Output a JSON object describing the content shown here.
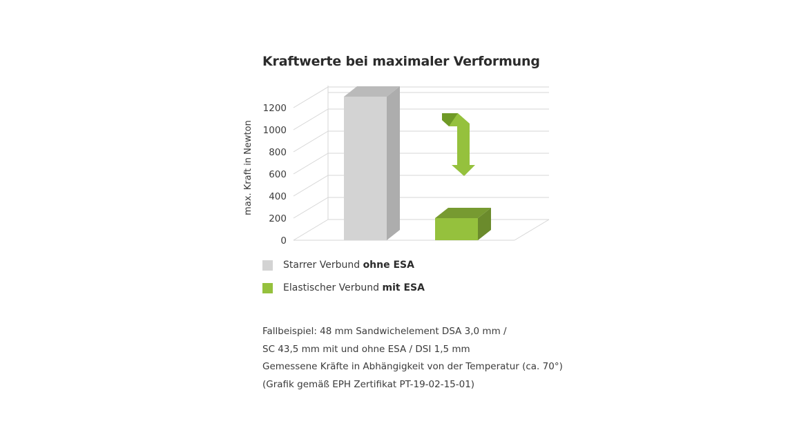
{
  "chart_data": {
    "type": "bar",
    "title": "Kraftwerte bei maximaler Verformung",
    "ylabel": "max. Kraft in Newton",
    "xlabel": "",
    "ylim": [
      0,
      1200
    ],
    "yticks": [
      0,
      200,
      400,
      600,
      800,
      1000,
      1200
    ],
    "grid": true,
    "three_d": true,
    "categories": [
      "Starrer Verbund ohne ESA",
      "Elastischer Verbund mit ESA"
    ],
    "values": [
      1300,
      200
    ],
    "colors": [
      "#d3d3d3",
      "#95c13d"
    ],
    "annotations": [
      "green-down-arrow"
    ]
  },
  "legend": [
    {
      "prefix": "Starrer Verbund ",
      "bold": "ohne ESA",
      "color": "#d3d3d3"
    },
    {
      "prefix": "Elastischer Verbund ",
      "bold": "mit ESA",
      "color": "#95c13d"
    }
  ],
  "notes": [
    "Fallbeispiel: 48 mm Sandwichelement DSA 3,0 mm /",
    "SC 43,5 mm mit und ohne ESA / DSI 1,5 mm",
    "Gemessene Kräfte in Abhängigkeit von der Temperatur (ca. 70°)",
    "(Grafik gemäß EPH Zertifikat PT-19-02-15-01)"
  ]
}
